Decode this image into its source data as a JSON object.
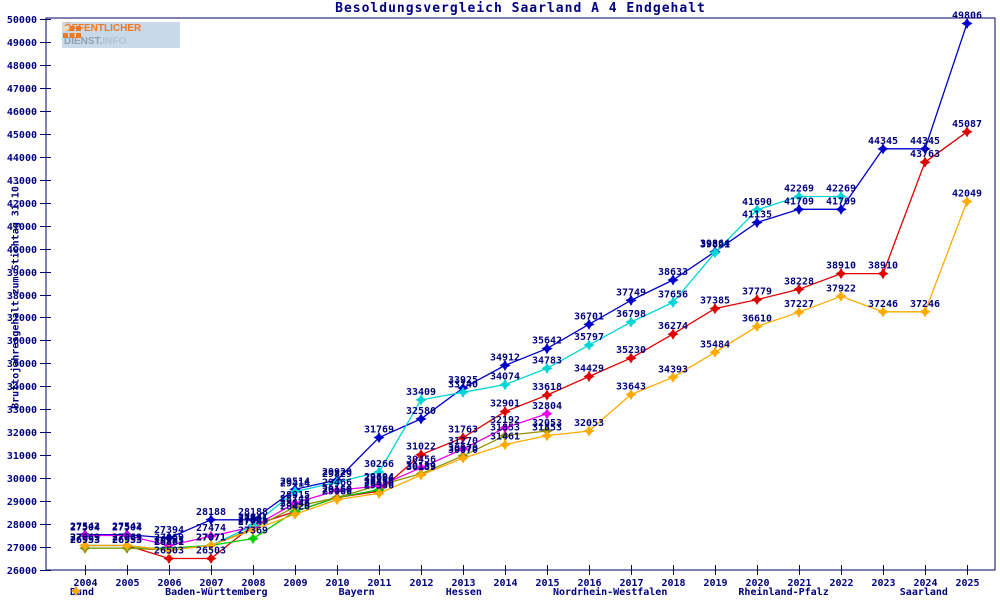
{
  "title": "Besoldungsvergleich Saarland A 4 Endgehalt",
  "y_axis_label": "Bruttojahresgehalt zum Stichtag 31.10.",
  "logo": {
    "line1": "ÖFFENTLICHER",
    "line2a": "DIENST.",
    "line2b": "INFO",
    "icon": "orange-squares-grid"
  },
  "colors": {
    "axis": "#000066",
    "tick_text": "#000080",
    "point_label": "#000080",
    "title_text": "#000080",
    "logo_bg": "#c9d9ea",
    "logo_orange": "#f07820",
    "logo_gray": "#8fa0b0"
  },
  "chart_data": {
    "type": "line",
    "title": "Besoldungsvergleich Saarland A 4 Endgehalt",
    "xlabel": "",
    "ylabel": "Bruttojahresgehalt zum Stichtag 31.10.",
    "ylim": [
      26000,
      50000
    ],
    "ytick_step": 1000,
    "grid": false,
    "legend_position": "bottom",
    "point_labels": true,
    "x": [
      2004,
      2005,
      2006,
      2007,
      2008,
      2009,
      2010,
      2011,
      2012,
      2013,
      2014,
      2015,
      2016,
      2017,
      2018,
      2019,
      2020,
      2021,
      2022,
      2023,
      2024,
      2025
    ],
    "series": [
      {
        "name": "Bund",
        "color": "#e00000",
        "values": [
          27069,
          27069,
          26503,
          26503,
          27941,
          28546,
          29156,
          29426,
          31022,
          31763,
          32901,
          33618,
          34429,
          35230,
          36274,
          37385,
          37779,
          38228,
          38910,
          38910,
          43763,
          45087
        ]
      },
      {
        "name": "Baden-Württemberg",
        "color": "#00cc00",
        "values": [
          26953,
          26953,
          26953,
          27071,
          27369,
          28546,
          29160,
          29496,
          null,
          null,
          null,
          null,
          null,
          null,
          null,
          null,
          null,
          null,
          null,
          null,
          null,
          null
        ]
      },
      {
        "name": "Bayern",
        "color": "#0000cc",
        "values": [
          27542,
          27542,
          27394,
          28188,
          28188,
          29514,
          29920,
          31769,
          32580,
          33925,
          34912,
          35642,
          36701,
          37749,
          38633,
          39864,
          41135,
          41709,
          41709,
          44345,
          44345,
          49806
        ]
      },
      {
        "name": "Hessen",
        "color": "#909000",
        "values": [
          26953,
          26953,
          26861,
          27071,
          27801,
          28748,
          29160,
          29694,
          30189,
          30970,
          31853,
          32053,
          null,
          null,
          null,
          null,
          null,
          null,
          null,
          null,
          null,
          null
        ]
      },
      {
        "name": "Nordrhein-Westfalen",
        "color": "#ee00ee",
        "values": [
          27504,
          27504,
          27069,
          27474,
          27881,
          28915,
          29466,
          29664,
          30456,
          31270,
          32192,
          32804,
          null,
          null,
          null,
          null,
          null,
          null,
          null,
          null,
          null,
          null
        ]
      },
      {
        "name": "Rheinland-Pfalz",
        "color": "#00d5d5",
        "values": [
          27069,
          27069,
          26861,
          27071,
          27941,
          29414,
          29829,
          30266,
          33409,
          33740,
          34074,
          34783,
          35797,
          36798,
          37656,
          39821,
          41690,
          42269,
          42269,
          null,
          null,
          null
        ]
      },
      {
        "name": "Saarland",
        "color": "#ffaa00",
        "values": [
          27069,
          27069,
          26861,
          27071,
          27747,
          28426,
          29066,
          29336,
          30139,
          30870,
          31461,
          31853,
          32053,
          33643,
          34393,
          35484,
          36610,
          37227,
          37922,
          37246,
          37246,
          42049
        ]
      }
    ]
  }
}
